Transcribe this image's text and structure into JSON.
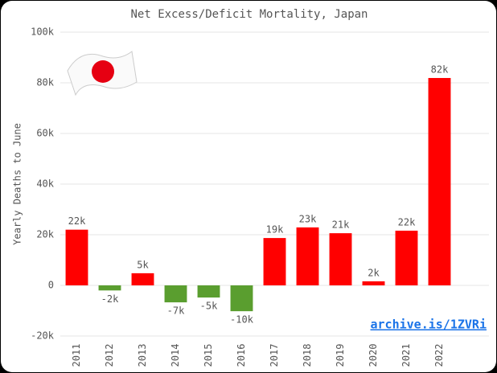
{
  "chart_data": {
    "type": "bar",
    "title": "Net Excess/Deficit Mortality, Japan",
    "y_label": "Yearly Deaths to June",
    "annotation": "archive.is/1ZVRi",
    "categories": [
      "2011",
      "2012",
      "2013",
      "2014",
      "2015",
      "2016",
      "2017",
      "2018",
      "2019",
      "2020",
      "2021",
      "2022"
    ],
    "values": [
      22000,
      -2000,
      4800,
      -6700,
      -4800,
      -10200,
      18700,
      22900,
      20600,
      1600,
      21600,
      81900
    ],
    "value_labels": [
      "22k",
      "-2k",
      "5k",
      "-7k",
      "-5k",
      "-10k",
      "19k",
      "23k",
      "21k",
      "2k",
      "22k",
      "82k"
    ],
    "colors": [
      "#ff0000",
      "#5a9e2f",
      "#ff0000",
      "#5a9e2f",
      "#5a9e2f",
      "#5a9e2f",
      "#ff0000",
      "#ff0000",
      "#ff0000",
      "#ff0000",
      "#ff0000",
      "#ff0000"
    ],
    "ylim": [
      -20000,
      100000
    ],
    "yticks": [
      {
        "value": -20000,
        "label": "-20k"
      },
      0,
      {
        "value": 20000,
        "label": "20k"
      },
      {
        "value": 40000,
        "label": "40k"
      },
      {
        "value": 60000,
        "label": "60k"
      },
      {
        "value": 80000,
        "label": "80k"
      },
      {
        "value": 100000,
        "label": "100k"
      }
    ],
    "grid": true
  }
}
